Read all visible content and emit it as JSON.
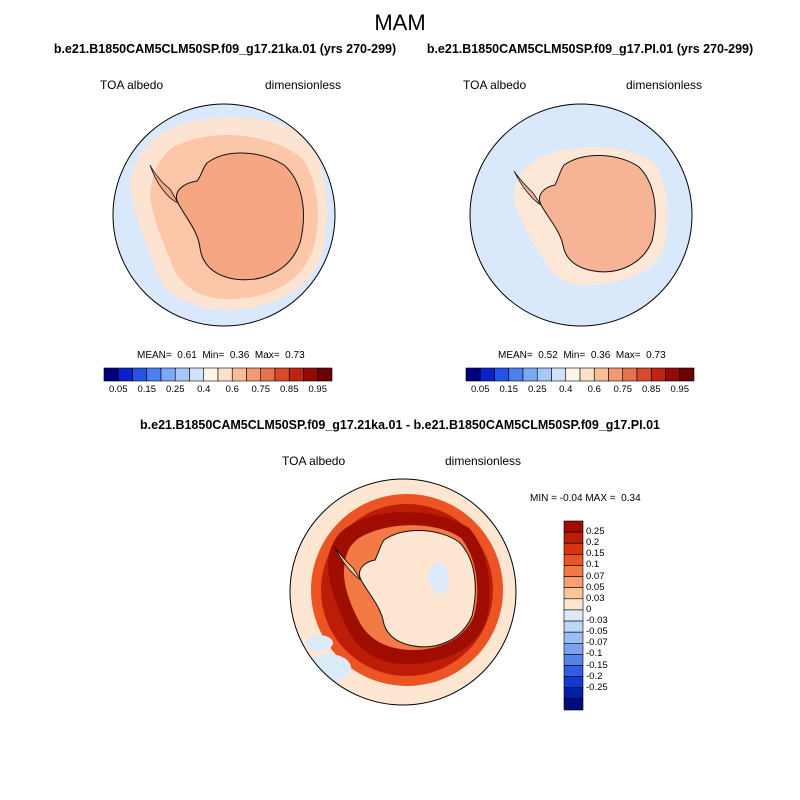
{
  "season": "MAM",
  "panels": [
    {
      "title": "b.e21.B1850CAM5CLM50SP.f09_g17.21ka.01 (yrs 270-299)",
      "var_label": "TOA albedo",
      "units_label": "dimensionless",
      "stats": {
        "mean_label": "MEAN=",
        "mean": "0.61",
        "min_label": "Min=",
        "min": "0.36",
        "max_label": "Max=",
        "max": "0.73"
      }
    },
    {
      "title": "b.e21.B1850CAM5CLM50SP.f09_g17.PI.01 (yrs 270-299)",
      "var_label": "TOA albedo",
      "units_label": "dimensionless",
      "stats": {
        "mean_label": "MEAN=",
        "mean": "0.52",
        "min_label": "Min=",
        "min": "0.36",
        "max_label": "Max=",
        "max": "0.73"
      }
    },
    {
      "title": "b.e21.B1850CAM5CLM50SP.f09_g17.21ka.01 - b.e21.B1850CAM5CLM50SP.f09_g17.PI.01",
      "var_label": "TOA albedo",
      "units_label": "dimensionless",
      "stats": {
        "min_label": "MIN =",
        "min": "-0.04",
        "max_label": "MAX =",
        "max": "0.34"
      }
    }
  ],
  "colorbar_top": {
    "ticks": [
      "0.05",
      "0.15",
      "0.25",
      "0.4",
      "0.6",
      "0.75",
      "0.85",
      "0.95"
    ],
    "colors": [
      "#00007f",
      "#0a20c8",
      "#2255e6",
      "#4a80f0",
      "#7aa8f5",
      "#a6c8f8",
      "#cfe2fa",
      "#fff4e8",
      "#fde0c8",
      "#f9bd9a",
      "#f39a73",
      "#e8704e",
      "#d84a2e",
      "#bf2413",
      "#960a05",
      "#6b0000"
    ]
  },
  "colorbar_diff": {
    "ticks": [
      "0.25",
      "0.2",
      "0.15",
      "0.1",
      "0.07",
      "0.05",
      "0.03",
      "0",
      "-0.03",
      "-0.05",
      "-0.07",
      "-0.1",
      "-0.15",
      "-0.2",
      "-0.25"
    ],
    "colors": [
      "#9e0d00",
      "#bd1c06",
      "#d8340f",
      "#ec5424",
      "#f37a44",
      "#f8a16c",
      "#fbc59c",
      "#fde6d2",
      "#dcebfa",
      "#bcd7f6",
      "#9abef2",
      "#7aa2ee",
      "#5682ea",
      "#2f5ee0",
      "#123ad0",
      "#001ea8",
      "#000c7a"
    ]
  }
}
